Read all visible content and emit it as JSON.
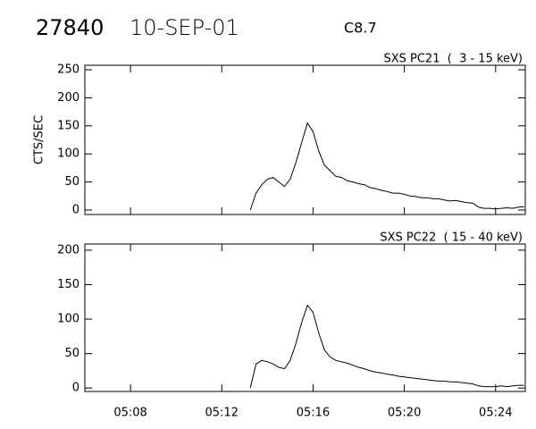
{
  "header": {
    "event": "27840",
    "date": "10-SEP-01",
    "class": "C8.7"
  },
  "chart_data": [
    {
      "type": "line",
      "subtitle": "SXS PC21  (  3 - 15 keV)",
      "ylabel": "CTS/SEC",
      "xlim": [
        306,
        325.3
      ],
      "xticks": [
        308,
        312,
        316,
        320,
        324
      ],
      "ylim": [
        -8,
        258
      ],
      "yticks": [
        0,
        50,
        100,
        150,
        200,
        250
      ],
      "x": [
        313.25,
        313.5,
        313.75,
        314,
        314.25,
        314.5,
        314.75,
        315,
        315.25,
        315.5,
        315.75,
        316,
        316.25,
        316.5,
        316.75,
        317,
        317.25,
        317.5,
        317.75,
        318,
        318.25,
        318.5,
        318.75,
        319,
        319.25,
        319.5,
        319.75,
        320,
        320.25,
        320.5,
        320.75,
        321,
        321.25,
        321.5,
        321.75,
        322,
        322.25,
        322.5,
        322.75,
        323,
        323.25,
        323.5,
        323.75,
        324,
        324.25,
        324.5,
        324.75,
        325,
        325.25
      ],
      "series": [
        {
          "color": "#000000",
          "values": [
            0,
            30,
            45,
            55,
            58,
            50,
            42,
            55,
            85,
            120,
            155,
            140,
            105,
            80,
            70,
            60,
            58,
            52,
            50,
            47,
            45,
            40,
            38,
            35,
            33,
            30,
            30,
            28,
            25,
            24,
            22,
            22,
            20,
            20,
            18,
            16,
            17,
            15,
            13,
            12,
            5,
            3,
            3,
            2,
            3,
            4,
            3,
            5,
            6
          ]
        }
      ]
    },
    {
      "type": "line",
      "subtitle": "SXS PC22  ( 15 - 40 keV)",
      "xlim": [
        306,
        325.3
      ],
      "xticks": [
        {
          "value": 308,
          "label": "05:08"
        },
        {
          "value": 312,
          "label": "05:12"
        },
        {
          "value": 316,
          "label": "05:16"
        },
        {
          "value": 320,
          "label": "05:20"
        },
        {
          "value": 324,
          "label": "05:24"
        }
      ],
      "ylim": [
        -5,
        209
      ],
      "yticks": [
        0,
        50,
        100,
        150,
        200
      ],
      "x": [
        313.25,
        313.5,
        313.75,
        314,
        314.25,
        314.5,
        314.75,
        315,
        315.25,
        315.5,
        315.75,
        316,
        316.25,
        316.5,
        316.75,
        317,
        317.25,
        317.5,
        317.75,
        318,
        318.25,
        318.5,
        318.75,
        319,
        319.25,
        319.5,
        319.75,
        320,
        320.25,
        320.5,
        320.75,
        321,
        321.25,
        321.5,
        321.75,
        322,
        322.25,
        322.5,
        322.75,
        323,
        323.25,
        323.5,
        323.75,
        324,
        324.25,
        324.5,
        324.75,
        325,
        325.25
      ],
      "series": [
        {
          "color": "#000000",
          "values": [
            0,
            35,
            40,
            38,
            35,
            30,
            28,
            40,
            65,
            95,
            120,
            110,
            80,
            55,
            45,
            40,
            38,
            36,
            33,
            30,
            28,
            25,
            23,
            22,
            20,
            19,
            17,
            16,
            15,
            14,
            13,
            12,
            11,
            10,
            10,
            9,
            9,
            8,
            7,
            6,
            3,
            2,
            2,
            2,
            3,
            2,
            3,
            4,
            4
          ]
        }
      ]
    }
  ]
}
